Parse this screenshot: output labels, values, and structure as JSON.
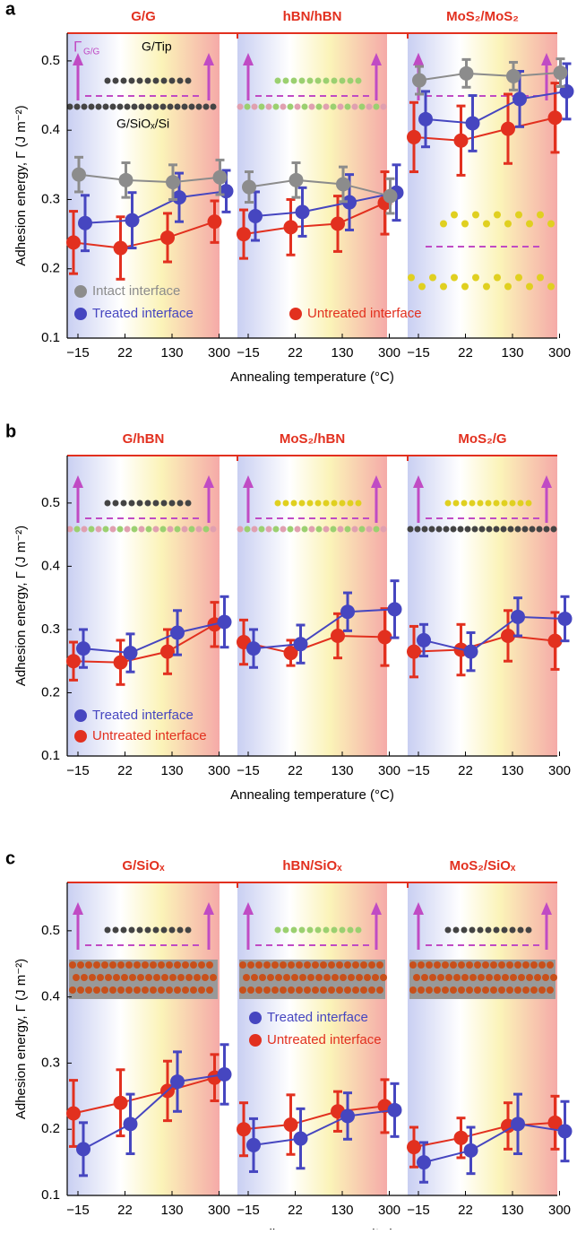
{
  "chart_data": [
    {
      "type": "errorbar",
      "panel": "a",
      "ylabel": "Adhesion energy, Γ (J m⁻²)",
      "xlabel": "Annealing temperature (°C)",
      "ylim": [
        0.1,
        0.54
      ],
      "yticks": [
        0.1,
        0.2,
        0.3,
        0.4,
        0.5
      ],
      "categories": [
        "−15",
        "22",
        "130",
        "300"
      ],
      "series": [
        {
          "name": "Intact interface",
          "color": "#8c8c8c"
        },
        {
          "name": "Treated interface",
          "color": "#4646c0"
        },
        {
          "name": "Untreated interface",
          "color": "#e2301f"
        }
      ],
      "annotations": [
        "Γ",
        "G/G",
        "G/Tip",
        "G/SiOₓ/Si"
      ],
      "subplots": [
        {
          "title": "G/G",
          "series": [
            {
              "values": [
                0.336,
                0.328,
                0.325,
                0.332
              ],
              "errors": [
                0.025,
                0.025,
                0.025,
                0.025
              ]
            },
            {
              "values": [
                0.266,
                0.27,
                0.303,
                0.312
              ],
              "errors": [
                0.04,
                0.04,
                0.035,
                0.03
              ]
            },
            {
              "values": [
                0.238,
                0.23,
                0.245,
                0.268
              ],
              "errors": [
                0.045,
                0.045,
                0.035,
                0.03
              ]
            }
          ]
        },
        {
          "title": "hBN/hBN",
          "series": [
            {
              "values": [
                0.318,
                0.328,
                0.322,
                0.305
              ],
              "errors": [
                0.022,
                0.025,
                0.025,
                0.025
              ]
            },
            {
              "values": [
                0.276,
                0.282,
                0.296,
                0.31
              ],
              "errors": [
                0.035,
                0.035,
                0.04,
                0.04
              ]
            },
            {
              "values": [
                0.25,
                0.26,
                0.265,
                0.295
              ],
              "errors": [
                0.035,
                0.04,
                0.04,
                0.045
              ]
            }
          ]
        },
        {
          "title": "MoS₂/MoS₂",
          "series": [
            {
              "values": [
                0.472,
                0.482,
                0.478,
                0.483
              ],
              "errors": [
                0.02,
                0.02,
                0.02,
                0.02
              ]
            },
            {
              "values": [
                0.416,
                0.41,
                0.445,
                0.456
              ],
              "errors": [
                0.04,
                0.04,
                0.04,
                0.04
              ]
            },
            {
              "values": [
                0.39,
                0.385,
                0.402,
                0.418
              ],
              "errors": [
                0.05,
                0.05,
                0.05,
                0.05
              ]
            }
          ]
        }
      ]
    },
    {
      "type": "errorbar",
      "panel": "b",
      "ylabel": "Adhesion energy, Γ (J m⁻²)",
      "xlabel": "Annealing temperature (°C)",
      "ylim": [
        0.1,
        0.575
      ],
      "yticks": [
        0.1,
        0.2,
        0.3,
        0.4,
        0.5
      ],
      "categories": [
        "−15",
        "22",
        "130",
        "300"
      ],
      "series": [
        {
          "name": "Treated interface",
          "color": "#4646c0"
        },
        {
          "name": "Untreated interface",
          "color": "#e2301f"
        }
      ],
      "subplots": [
        {
          "title": "G/hBN",
          "series": [
            {
              "values": [
                0.27,
                0.263,
                0.295,
                0.312
              ],
              "errors": [
                0.03,
                0.03,
                0.035,
                0.04
              ]
            },
            {
              "values": [
                0.25,
                0.248,
                0.265,
                0.308
              ],
              "errors": [
                0.03,
                0.035,
                0.035,
                0.035
              ]
            }
          ]
        },
        {
          "title": "MoS₂/hBN",
          "series": [
            {
              "values": [
                0.27,
                0.277,
                0.328,
                0.332
              ],
              "errors": [
                0.03,
                0.03,
                0.03,
                0.045
              ]
            },
            {
              "values": [
                0.28,
                0.263,
                0.29,
                0.288
              ],
              "errors": [
                0.035,
                0.02,
                0.035,
                0.045
              ]
            }
          ]
        },
        {
          "title": "MoS₂/G",
          "series": [
            {
              "values": [
                0.283,
                0.265,
                0.32,
                0.317
              ],
              "errors": [
                0.025,
                0.03,
                0.03,
                0.035
              ]
            },
            {
              "values": [
                0.265,
                0.268,
                0.29,
                0.282
              ],
              "errors": [
                0.04,
                0.04,
                0.04,
                0.045
              ]
            }
          ]
        }
      ]
    },
    {
      "type": "errorbar",
      "panel": "c",
      "ylabel": "Adhesion energy, Γ (J m⁻²)",
      "xlabel": "Annealing temperature (°C)",
      "ylim": [
        0.1,
        0.573
      ],
      "yticks": [
        0.1,
        0.2,
        0.3,
        0.4,
        0.5
      ],
      "categories": [
        "−15",
        "22",
        "130",
        "300"
      ],
      "series": [
        {
          "name": "Treated interface",
          "color": "#4646c0"
        },
        {
          "name": "Untreated interface",
          "color": "#e2301f"
        }
      ],
      "subplots": [
        {
          "title": "G/SiOₓ",
          "series": [
            {
              "values": [
                0.17,
                0.208,
                0.272,
                0.283
              ],
              "errors": [
                0.04,
                0.045,
                0.045,
                0.045
              ]
            },
            {
              "values": [
                0.224,
                0.24,
                0.258,
                0.278
              ],
              "errors": [
                0.05,
                0.05,
                0.045,
                0.035
              ]
            }
          ]
        },
        {
          "title": "hBN/SiOₓ",
          "series": [
            {
              "values": [
                0.176,
                0.186,
                0.22,
                0.229
              ],
              "errors": [
                0.04,
                0.045,
                0.035,
                0.04
              ]
            },
            {
              "values": [
                0.2,
                0.207,
                0.227,
                0.235
              ],
              "errors": [
                0.04,
                0.045,
                0.03,
                0.04
              ]
            }
          ]
        },
        {
          "title": "MoS₂/SiOₓ",
          "series": [
            {
              "values": [
                0.15,
                0.168,
                0.208,
                0.197
              ],
              "errors": [
                0.03,
                0.035,
                0.045,
                0.045
              ]
            },
            {
              "values": [
                0.173,
                0.187,
                0.205,
                0.21
              ],
              "errors": [
                0.03,
                0.03,
                0.035,
                0.04
              ]
            }
          ]
        }
      ]
    }
  ]
}
